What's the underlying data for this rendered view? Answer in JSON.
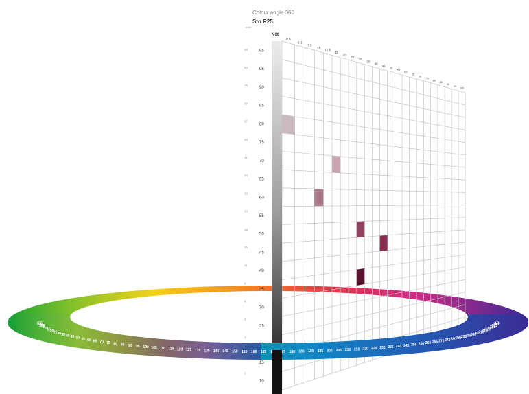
{
  "header": {
    "title": "Colour angle 360",
    "name": "Sto R25",
    "white_label": "white",
    "neutral_label": "N00"
  },
  "chroma_labels": [
    "0.5",
    "0.5",
    "7.5",
    "10",
    "12.5",
    "15",
    "20",
    "25",
    "30",
    "35",
    "40",
    "45",
    "50",
    "55",
    "60",
    "65",
    "70",
    "75",
    "80",
    "85",
    "90",
    "95",
    "100"
  ],
  "lightness_labels": [
    "95",
    "95",
    "90",
    "85",
    "80",
    "75",
    "70",
    "65",
    "60",
    "55",
    "50",
    "45",
    "40",
    "35",
    "30",
    "25",
    "20",
    "15",
    "10"
  ],
  "lrv_labels": [
    "88",
    "83",
    "76",
    "68",
    "57",
    "49",
    "41",
    "34",
    "28",
    "23",
    "18",
    "15",
    "11",
    "8",
    "6",
    "4",
    "3",
    "2",
    "1"
  ],
  "samples": [
    {
      "chroma": "0.5",
      "lightness": "80",
      "color": "#cab9bf"
    },
    {
      "chroma": "15",
      "lightness": "70",
      "color": "#c8a4b1"
    },
    {
      "chroma": "10",
      "lightness": "60",
      "color": "#a77a8a"
    },
    {
      "chroma": "30",
      "lightness": "50",
      "color": "#8e4460"
    },
    {
      "chroma": "45",
      "lightness": "45",
      "color": "#852a50"
    },
    {
      "chroma": "30",
      "lightness": "35",
      "color": "#55132f"
    }
  ],
  "wheel_labels": [
    "350",
    "355",
    "360",
    "5",
    "10",
    "15",
    "20",
    "25",
    "30",
    "35",
    "40",
    "45",
    "50",
    "55",
    "60",
    "65",
    "70",
    "75",
    "80",
    "85",
    "90",
    "95",
    "100",
    "105",
    "110",
    "115",
    "120",
    "125",
    "130",
    "135",
    "140",
    "145",
    "150",
    "155",
    "160",
    "165",
    "170",
    "175",
    "180",
    "185",
    "190",
    "195",
    "200",
    "205",
    "210",
    "215",
    "220",
    "225",
    "230",
    "235",
    "240",
    "245",
    "250",
    "255",
    "260",
    "265",
    "270",
    "275",
    "280",
    "285",
    "290",
    "295",
    "300",
    "305",
    "310",
    "315",
    "320",
    "325",
    "330",
    "335",
    "340",
    "345"
  ]
}
